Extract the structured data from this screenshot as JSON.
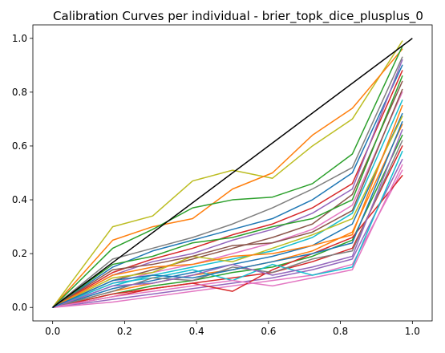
{
  "chart_data": {
    "type": "line",
    "title": "Calibration Curves per individual - brier_topk_dice_plusplus_0",
    "xlabel": "",
    "ylabel": "",
    "xlim": [
      -0.055,
      1.055
    ],
    "ylim": [
      -0.05,
      1.05
    ],
    "grid": false,
    "x_ticks": [
      0.0,
      0.2,
      0.4,
      0.6,
      0.8,
      1.0
    ],
    "x_tick_labels": [
      "0.0",
      "0.2",
      "0.4",
      "0.6",
      "0.8",
      "1.0"
    ],
    "y_ticks": [
      0.0,
      0.2,
      0.4,
      0.6,
      0.8,
      1.0
    ],
    "y_tick_labels": [
      "0.0",
      "0.2",
      "0.4",
      "0.6",
      "0.8",
      "1.0"
    ],
    "reference_line": {
      "color": "#000000",
      "x": [
        0.0,
        1.0
      ],
      "y": [
        0.0,
        1.0
      ]
    },
    "x": [
      0.0,
      0.167,
      0.278,
      0.389,
      0.5,
      0.611,
      0.722,
      0.833,
      0.972
    ],
    "series": [
      {
        "color": "#bcbd22",
        "values": [
          0.0,
          0.3,
          0.34,
          0.47,
          0.51,
          0.48,
          0.6,
          0.7,
          0.99
        ]
      },
      {
        "color": "#ff7f0e",
        "values": [
          0.0,
          0.25,
          0.3,
          0.33,
          0.44,
          0.5,
          0.64,
          0.74,
          0.96
        ]
      },
      {
        "color": "#2ca02c",
        "values": [
          0.0,
          0.22,
          0.29,
          0.37,
          0.4,
          0.41,
          0.46,
          0.57,
          0.97
        ]
      },
      {
        "color": "#7f7f7f",
        "values": [
          0.0,
          0.18,
          0.22,
          0.26,
          0.31,
          0.37,
          0.44,
          0.52,
          0.93
        ]
      },
      {
        "color": "#1f77b4",
        "values": [
          0.0,
          0.15,
          0.21,
          0.25,
          0.29,
          0.33,
          0.4,
          0.5,
          0.9
        ]
      },
      {
        "color": "#d62728",
        "values": [
          0.0,
          0.13,
          0.18,
          0.22,
          0.27,
          0.31,
          0.37,
          0.46,
          0.88
        ]
      },
      {
        "color": "#9467bd",
        "values": [
          0.0,
          0.12,
          0.17,
          0.2,
          0.25,
          0.29,
          0.35,
          0.44,
          0.92
        ]
      },
      {
        "color": "#8c564b",
        "values": [
          0.0,
          0.1,
          0.14,
          0.18,
          0.22,
          0.26,
          0.31,
          0.42,
          0.84
        ]
      },
      {
        "color": "#e377c2",
        "values": [
          0.0,
          0.09,
          0.13,
          0.16,
          0.2,
          0.24,
          0.29,
          0.38,
          0.8
        ]
      },
      {
        "color": "#17becf",
        "values": [
          0.0,
          0.08,
          0.12,
          0.15,
          0.18,
          0.21,
          0.26,
          0.35,
          0.77
        ]
      },
      {
        "color": "#1f77b4",
        "values": [
          0.0,
          0.07,
          0.1,
          0.13,
          0.16,
          0.19,
          0.23,
          0.31,
          0.72
        ]
      },
      {
        "color": "#ff7f0e",
        "values": [
          0.0,
          0.06,
          0.09,
          0.12,
          0.14,
          0.17,
          0.21,
          0.28,
          0.68
        ]
      },
      {
        "color": "#2ca02c",
        "values": [
          0.0,
          0.05,
          0.08,
          0.1,
          0.13,
          0.15,
          0.19,
          0.25,
          0.64
        ]
      },
      {
        "color": "#d62728",
        "values": [
          0.0,
          0.04,
          0.07,
          0.09,
          0.11,
          0.13,
          0.17,
          0.22,
          0.6
        ]
      },
      {
        "color": "#9467bd",
        "values": [
          0.0,
          0.03,
          0.05,
          0.07,
          0.09,
          0.11,
          0.14,
          0.18,
          0.55
        ]
      },
      {
        "color": "#e377c2",
        "values": [
          0.0,
          0.02,
          0.04,
          0.06,
          0.08,
          0.1,
          0.12,
          0.16,
          0.51
        ]
      },
      {
        "color": "#d62728",
        "values": [
          0.0,
          0.05,
          0.07,
          0.09,
          0.06,
          0.14,
          0.2,
          0.26,
          0.49
        ]
      },
      {
        "color": "#bcbd22",
        "values": [
          0.0,
          0.11,
          0.13,
          0.19,
          0.17,
          0.22,
          0.27,
          0.33,
          0.71
        ]
      },
      {
        "color": "#17becf",
        "values": [
          0.0,
          0.09,
          0.11,
          0.14,
          0.1,
          0.16,
          0.12,
          0.15,
          0.58
        ]
      },
      {
        "color": "#8c564b",
        "values": [
          0.0,
          0.14,
          0.16,
          0.19,
          0.23,
          0.24,
          0.28,
          0.36,
          0.81
        ]
      },
      {
        "color": "#7f7f7f",
        "values": [
          0.0,
          0.06,
          0.11,
          0.1,
          0.15,
          0.13,
          0.18,
          0.21,
          0.62
        ]
      },
      {
        "color": "#2ca02c",
        "values": [
          0.0,
          0.16,
          0.19,
          0.24,
          0.26,
          0.3,
          0.33,
          0.4,
          0.86
        ]
      },
      {
        "color": "#ff7f0e",
        "values": [
          0.0,
          0.12,
          0.15,
          0.16,
          0.19,
          0.2,
          0.23,
          0.27,
          0.75
        ]
      },
      {
        "color": "#9467bd",
        "values": [
          0.0,
          0.08,
          0.09,
          0.12,
          0.16,
          0.12,
          0.15,
          0.19,
          0.66
        ]
      },
      {
        "color": "#e377c2",
        "values": [
          0.0,
          0.04,
          0.06,
          0.08,
          0.1,
          0.08,
          0.11,
          0.14,
          0.53
        ]
      },
      {
        "color": "#1f77b4",
        "values": [
          0.0,
          0.1,
          0.12,
          0.11,
          0.14,
          0.17,
          0.2,
          0.24,
          0.69
        ]
      }
    ]
  }
}
